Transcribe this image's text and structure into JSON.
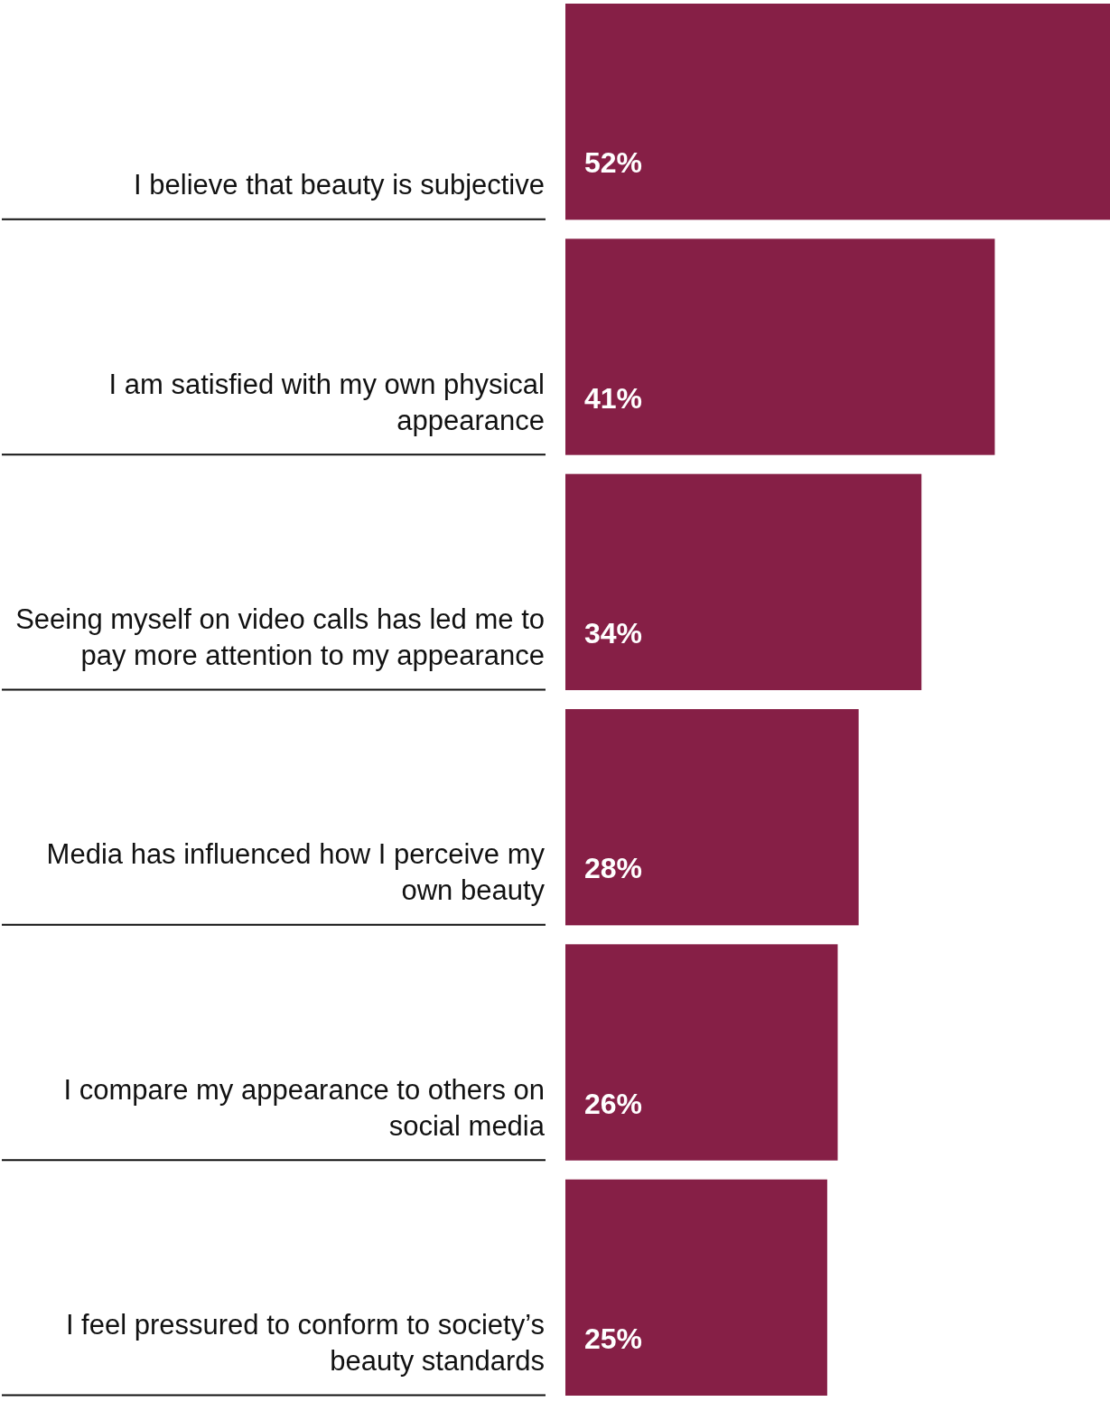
{
  "chart_data": {
    "type": "bar",
    "orientation": "horizontal",
    "categories": [
      "I believe that beauty is subjective",
      "I am satisfied with my own physical appearance",
      "Seeing myself on video calls has led me to pay more attention to my appearance",
      "Media has influenced how I perceive my own beauty",
      "I compare my appearance to others on social media",
      "I feel pressured to conform to society’s beauty standards"
    ],
    "values": [
      52,
      41,
      34,
      28,
      26,
      25
    ],
    "value_labels": [
      "52%",
      "41%",
      "34%",
      "28%",
      "26%",
      "25%"
    ],
    "color": "#861f46"
  }
}
